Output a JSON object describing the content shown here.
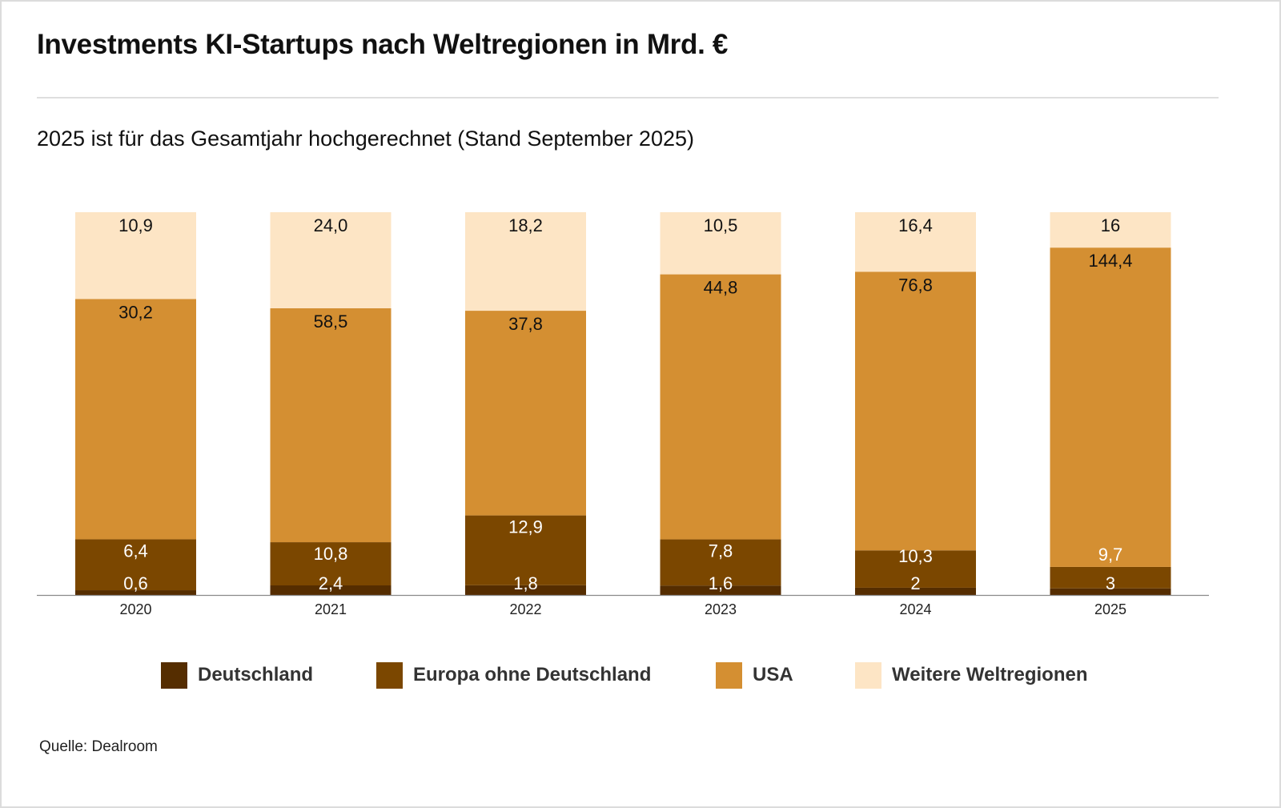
{
  "header": {
    "title": "Investments KI-Startups nach Weltregionen in Mrd. €",
    "subtitle": "2025 ist für das Gesamtjahr hochgerechnet (Stand September 2025)"
  },
  "footer": {
    "source": "Quelle: Dealroom"
  },
  "chart_data": {
    "type": "bar",
    "stacked": true,
    "normalized": "100% stacked (each bar scaled to its total)",
    "title": "Investments KI-Startups nach Weltregionen in Mrd. €",
    "subtitle": "2025 ist für das Gesamtjahr hochgerechnet (Stand September 2025)",
    "xlabel": "",
    "ylabel": "",
    "categories": [
      "2020",
      "2021",
      "2022",
      "2023",
      "2024",
      "2025"
    ],
    "series": [
      {
        "name": "Deutschland",
        "color": "#552d00",
        "label_color": "#ffffff",
        "values": [
          0.6,
          2.4,
          1.8,
          1.6,
          2,
          3
        ],
        "labels": [
          "0,6",
          "2,4",
          "1,8",
          "1,6",
          "2",
          "3"
        ]
      },
      {
        "name": "Europa ohne Deutschland",
        "color": "#7b4700",
        "label_color": "#ffffff",
        "values": [
          6.4,
          10.8,
          12.9,
          7.8,
          10.3,
          9.7
        ],
        "labels": [
          "6,4",
          "10,8",
          "12,9",
          "7,8",
          "10,3",
          "9,7"
        ]
      },
      {
        "name": "USA",
        "color": "#d48f32",
        "label_color": "#111111",
        "values": [
          30.2,
          58.5,
          37.8,
          44.8,
          76.8,
          144.4
        ],
        "labels": [
          "30,2",
          "58,5",
          "37,8",
          "44,8",
          "76,8",
          "144,4"
        ]
      },
      {
        "name": "Weitere Weltregionen",
        "color": "#fde5c5",
        "label_color": "#111111",
        "values": [
          10.9,
          24.0,
          18.2,
          10.5,
          16.4,
          16
        ],
        "labels": [
          "10,9",
          "24,0",
          "18,2",
          "10,5",
          "16,4",
          "16"
        ]
      }
    ],
    "legend": {
      "position": "bottom",
      "entries": [
        "Deutschland",
        "Europa ohne Deutschland",
        "USA",
        "Weitere Weltregionen"
      ]
    },
    "grid": false,
    "source": "Quelle: Dealroom"
  }
}
